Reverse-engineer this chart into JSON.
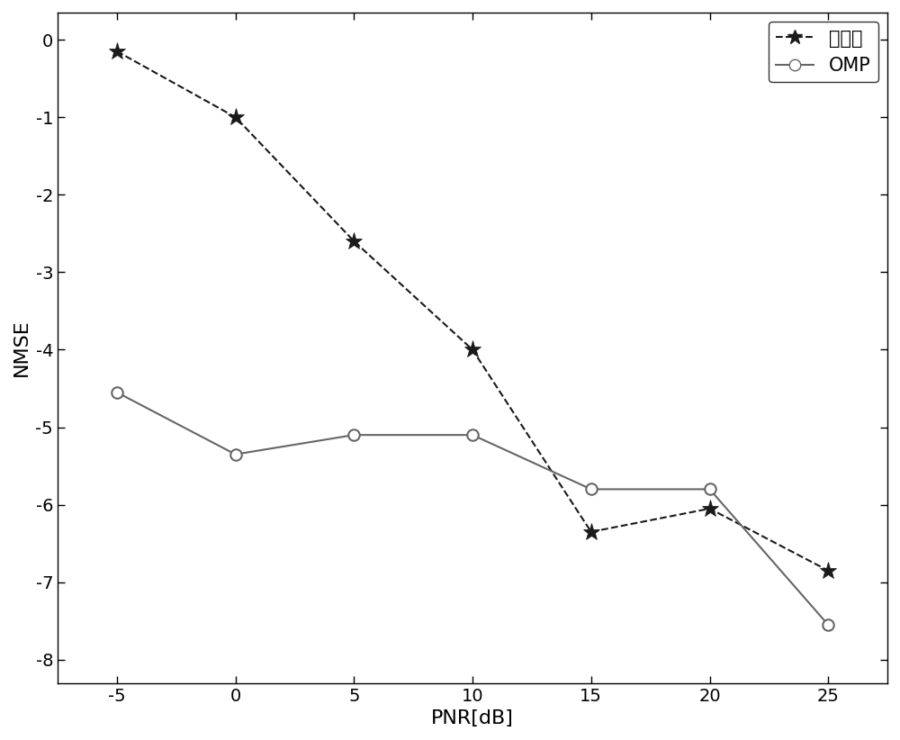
{
  "x": [
    -5,
    0,
    5,
    10,
    15,
    20,
    25
  ],
  "ben_faming": [
    -0.15,
    -1.0,
    -2.6,
    -4.0,
    -6.35,
    -6.05,
    -6.85
  ],
  "omp": [
    -4.55,
    -5.35,
    -5.1,
    -5.1,
    -5.8,
    -5.8,
    -7.55
  ],
  "xlabel": "PNR[dB]",
  "ylabel": "NMSE",
  "xlim": [
    -7.5,
    27.5
  ],
  "ylim": [
    -8.3,
    0.35
  ],
  "xticks": [
    -5,
    0,
    5,
    10,
    15,
    20,
    25
  ],
  "yticks": [
    0,
    -1,
    -2,
    -3,
    -4,
    -5,
    -6,
    -7,
    -8
  ],
  "legend_ben": "本发明",
  "legend_omp": "OMP",
  "ben_color": "#1a1a1a",
  "omp_color": "#666666",
  "bg_color": "#ffffff",
  "legend_fontsize": 15,
  "axis_label_fontsize": 16,
  "tick_fontsize": 14,
  "line_width": 1.5,
  "marker_size_star": 14,
  "marker_size_circle": 9
}
